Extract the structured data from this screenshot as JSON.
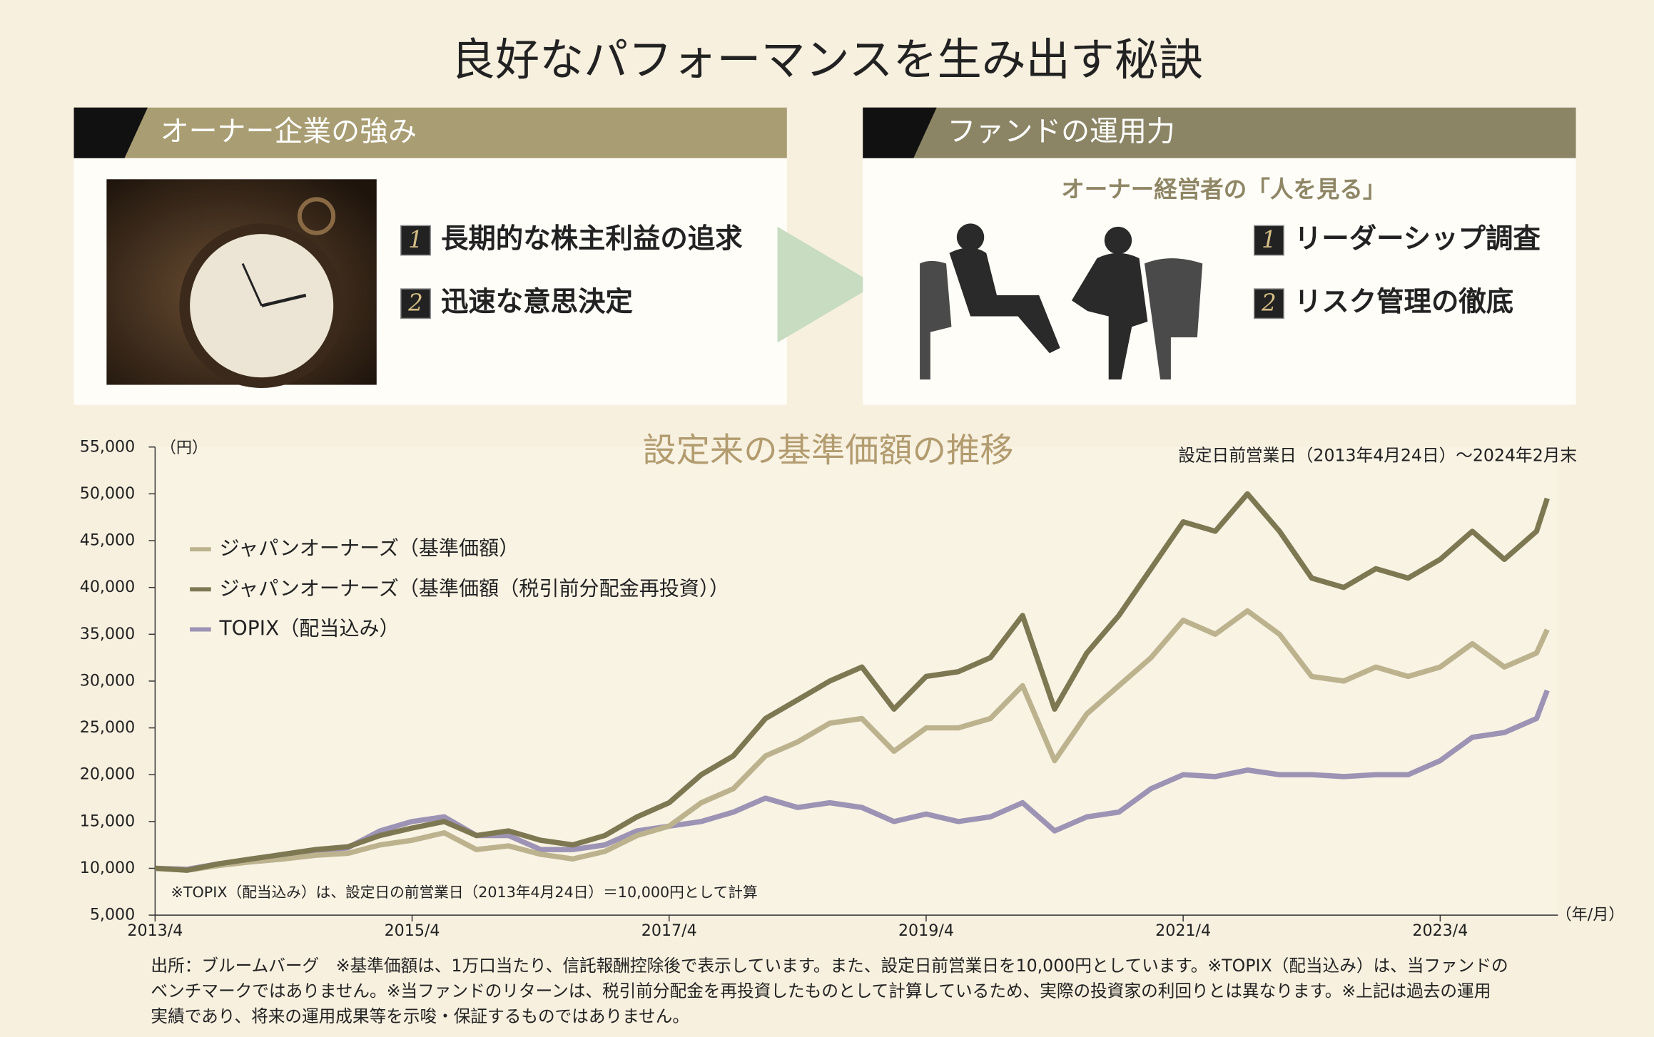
{
  "title": "良好なパフォーマンスを生み出す秘訣",
  "panels": [
    {
      "header": "オーナー企業の強み",
      "items": [
        {
          "number": "1",
          "text": "長期的な株主利益の追求"
        },
        {
          "number": "2",
          "text": "迅速な意思決定"
        }
      ]
    },
    {
      "header": "ファンドの運用力",
      "subheader": "オーナー経営者の「人を見る」",
      "items": [
        {
          "number": "1",
          "text": "リーダーシップ調査"
        },
        {
          "number": "2",
          "text": "リスク管理の徹底"
        }
      ]
    }
  ],
  "chart_data": {
    "type": "line",
    "title": "設定来の基準価額の推移",
    "subtitle": "設定日前営業日（2013年4月24日）～2024年2月末",
    "y_label": "（円）",
    "x_label": "（年/月）",
    "annotation": "※TOPIX（配当込み）は、設定日の前営業日（2013年4月24日）＝10,000円として計算",
    "x": [
      "2013/4",
      "2013/7",
      "2013/10",
      "2014/1",
      "2014/4",
      "2014/7",
      "2014/10",
      "2015/1",
      "2015/4",
      "2015/7",
      "2015/10",
      "2016/1",
      "2016/4",
      "2016/7",
      "2016/10",
      "2017/1",
      "2017/4",
      "2017/7",
      "2017/10",
      "2018/1",
      "2018/4",
      "2018/7",
      "2018/10",
      "2019/1",
      "2019/4",
      "2019/7",
      "2019/10",
      "2020/1",
      "2020/4",
      "2020/7",
      "2020/10",
      "2021/1",
      "2021/4",
      "2021/7",
      "2021/10",
      "2022/1",
      "2022/4",
      "2022/7",
      "2022/10",
      "2023/1",
      "2023/4",
      "2023/7",
      "2023/10",
      "2024/1",
      "2024/2"
    ],
    "series": [
      {
        "name": "ジャパンオーナーズ（基準価額）",
        "color": "#bcb38e",
        "values": [
          10000,
          9800,
          10300,
          10700,
          11000,
          11400,
          11600,
          12500,
          13000,
          13800,
          12000,
          12400,
          11500,
          11000,
          11800,
          13500,
          14500,
          17000,
          18500,
          22000,
          23500,
          25500,
          26000,
          22500,
          25000,
          25000,
          26000,
          29500,
          21500,
          26500,
          29500,
          32500,
          36500,
          35000,
          37500,
          35000,
          30500,
          30000,
          31500,
          30500,
          31500,
          34000,
          31500,
          33000,
          35500
        ]
      },
      {
        "name": "ジャパンオーナーズ（基準価額（税引前分配金再投資））",
        "color": "#7d7852",
        "values": [
          10000,
          9800,
          10500,
          11000,
          11500,
          12000,
          12300,
          13500,
          14300,
          15000,
          13500,
          14000,
          13000,
          12500,
          13500,
          15500,
          17000,
          20000,
          22000,
          26000,
          28000,
          30000,
          31500,
          27000,
          30500,
          31000,
          32500,
          37000,
          27000,
          33000,
          37000,
          42000,
          47000,
          46000,
          50000,
          46000,
          41000,
          40000,
          42000,
          41000,
          43000,
          46000,
          43000,
          46000,
          49500
        ]
      },
      {
        "name": "TOPIX（配当込み）",
        "color": "#9d93b4",
        "values": [
          10000,
          9900,
          10500,
          10700,
          11000,
          11800,
          12200,
          14000,
          15000,
          15500,
          13500,
          13500,
          12000,
          12000,
          12500,
          14000,
          14500,
          15000,
          16000,
          17500,
          16500,
          17000,
          16500,
          15000,
          15800,
          15000,
          15500,
          17000,
          14000,
          15500,
          16000,
          18500,
          20000,
          19800,
          20500,
          20000,
          20000,
          19800,
          20000,
          20000,
          21500,
          24000,
          24500,
          26000,
          29000
        ]
      }
    ],
    "xlim": [
      "2013/4",
      "2024/3"
    ],
    "xticks": [
      "2013/4",
      "2015/4",
      "2017/4",
      "2019/4",
      "2021/4",
      "2023/4"
    ],
    "ylim": [
      5000,
      55000
    ],
    "yticks": [
      {
        "value": 5000,
        "label": "5,000"
      },
      {
        "value": 10000,
        "label": "10,000"
      },
      {
        "value": 15000,
        "label": "15,000"
      },
      {
        "value": 20000,
        "label": "20,000"
      },
      {
        "value": 25000,
        "label": "25,000"
      },
      {
        "value": 30000,
        "label": "30,000"
      },
      {
        "value": 35000,
        "label": "35,000"
      },
      {
        "value": 40000,
        "label": "40,000"
      },
      {
        "value": 45000,
        "label": "45,000"
      },
      {
        "value": 50000,
        "label": "50,000"
      },
      {
        "value": 55000,
        "label": "55,000"
      }
    ],
    "grid": false,
    "legend": "upper left"
  },
  "footnote": [
    "出所：ブルームバーグ　※基準価額は、1万口当たり、信託報酬控除後で表示しています。また、設定日前営業日を10,000円としています。※TOPIX（配当込み）は、当ファンドの",
    "ベンチマークではありません。※当ファンドのリターンは、税引前分配金を再投資したものとして計算しているため、実際の投資家の利回りとは異なります。※上記は過去の運用",
    "実績であり、将来の運用成果等を示唆・保証するものではありません。"
  ]
}
